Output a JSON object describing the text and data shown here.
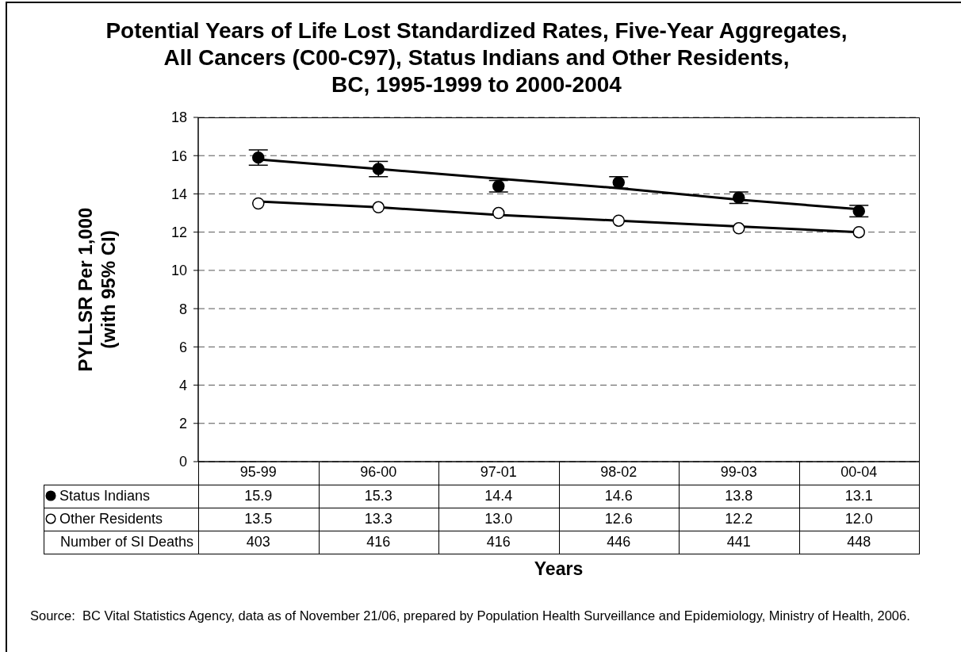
{
  "chart_data": [
    {
      "type": "scatter",
      "title": "Potential Years of Life Lost Standardized Rates, Five-Year Aggregates,\nAll Cancers (C00-C97), Status Indians and Other Residents,\nBC, 1995-1999 to 2000-2004",
      "xlabel": "Years",
      "ylabel": "PYLLSR Per 1,000\n(with 95% CI)",
      "categories": [
        "95-99",
        "96-00",
        "97-01",
        "98-02",
        "99-03",
        "00-04"
      ],
      "series": [
        {
          "name": "Status Indians",
          "color": "#000000",
          "values": [
            15.9,
            15.3,
            14.4,
            14.6,
            13.8,
            13.1
          ],
          "errors": [
            0.4,
            0.4,
            0.3,
            0.3,
            0.3,
            0.3
          ],
          "value_labels": [
            "15.9",
            "15.3",
            "14.4",
            "14.6",
            "13.8",
            "13.1"
          ]
        },
        {
          "name": "Other Residents",
          "color": "#ffffff",
          "values": [
            13.5,
            13.3,
            13.0,
            12.6,
            12.2,
            12.0
          ],
          "value_labels": [
            "13.5",
            "13.3",
            "13.0",
            "12.6",
            "12.2",
            "12.0"
          ]
        },
        {
          "type": "line",
          "color": "#000000",
          "marker": "none",
          "values": [
            15.8,
            15.3,
            14.8,
            14.3,
            13.7,
            13.2
          ]
        },
        {
          "type": "line",
          "color": "#000000",
          "marker": "none",
          "values": [
            13.6,
            13.3,
            12.9,
            12.6,
            12.3,
            12.0
          ]
        }
      ],
      "ylim": [
        0,
        18
      ],
      "yticks": [
        0,
        2,
        4,
        6,
        8,
        10,
        12,
        14,
        16,
        18
      ],
      "grid": "y",
      "legend": "bottom",
      "marker": "circle",
      "annotations": [
        "Source:  BC Vital Statistics Agency, data as of November 21/06, prepared by Population Health Surveillance and Epidemiology, Ministry of Health, 2006."
      ]
    },
    {
      "type": "other",
      "data_labels": true,
      "series": [
        {
          "name": "Number of SI Deaths",
          "values": [
            403,
            416,
            416,
            446,
            441,
            448
          ]
        }
      ]
    }
  ]
}
